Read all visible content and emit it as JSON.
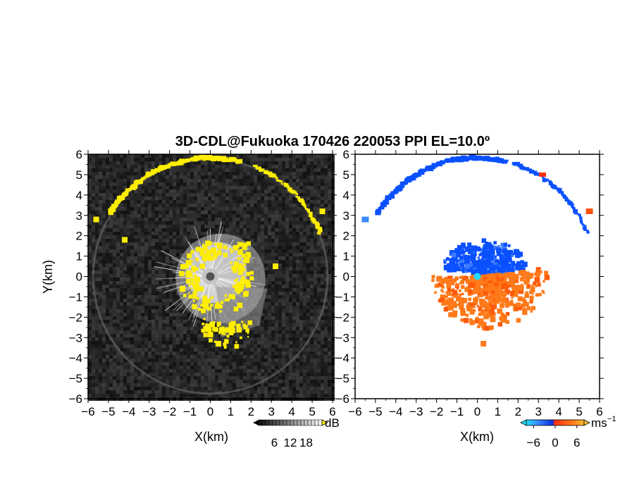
{
  "title": "3D-CDL@Fukuoka 170426 220053 PPI EL=10.0º",
  "colors": {
    "noise_dark": "#1a1a1a",
    "noise_light": "#5a5a5a",
    "highlight": "#ffee00",
    "negative": "#0a50ff",
    "positive": "#ff7a1a",
    "zero": "#22ddff"
  },
  "chart_data": [
    {
      "type": "heatmap",
      "panel": "left",
      "quantity": "intensity",
      "xlabel": "X(km)",
      "ylabel": "Y(km)",
      "xlim": [
        -6,
        6
      ],
      "ylim": [
        -6,
        6
      ],
      "xticks": [
        -6,
        -5,
        -4,
        -3,
        -2,
        -1,
        0,
        1,
        2,
        3,
        4,
        5,
        6
      ],
      "yticks": [
        -6,
        -5,
        -4,
        -3,
        -2,
        -1,
        0,
        1,
        2,
        3,
        4,
        5,
        6
      ],
      "colorbar": {
        "unit": "dB",
        "ticks": [
          6,
          12,
          18
        ],
        "range": [
          0,
          24
        ]
      }
    },
    {
      "type": "heatmap",
      "panel": "right",
      "quantity": "radial velocity",
      "xlabel": "X(km)",
      "ylabel": "",
      "xlim": [
        -6,
        6
      ],
      "ylim": [
        -6,
        6
      ],
      "xticks": [
        -6,
        -5,
        -4,
        -3,
        -2,
        -1,
        0,
        1,
        2,
        3,
        4,
        5,
        6
      ],
      "yticks": [
        -6,
        -5,
        -4,
        -3,
        -2,
        -1,
        0,
        1,
        2,
        3,
        4,
        5,
        6
      ],
      "colorbar": {
        "unit": "ms",
        "unit_exp": "−1",
        "ticks": [
          "−6",
          "0",
          "6"
        ],
        "range": [
          -8,
          8
        ]
      }
    }
  ]
}
